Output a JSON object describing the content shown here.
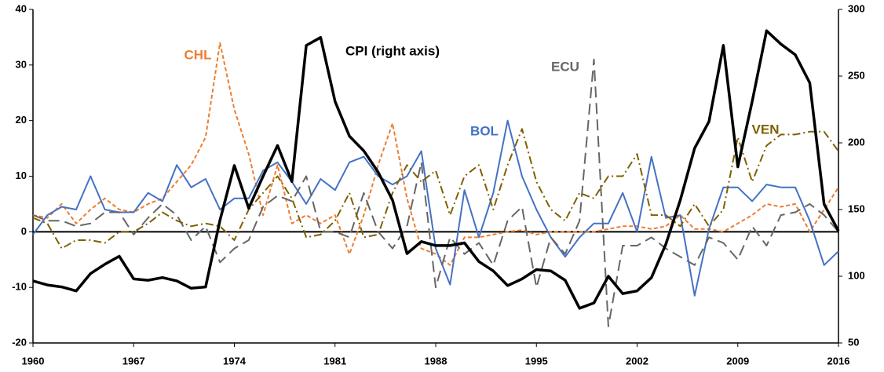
{
  "chart_data": {
    "type": "line",
    "x": [
      1960,
      1961,
      1962,
      1963,
      1964,
      1965,
      1966,
      1967,
      1968,
      1969,
      1970,
      1971,
      1972,
      1973,
      1974,
      1975,
      1976,
      1977,
      1978,
      1979,
      1980,
      1981,
      1982,
      1983,
      1984,
      1985,
      1986,
      1987,
      1988,
      1989,
      1990,
      1991,
      1992,
      1993,
      1994,
      1995,
      1996,
      1997,
      1998,
      1999,
      2000,
      2001,
      2002,
      2003,
      2004,
      2005,
      2006,
      2007,
      2008,
      2009,
      2010,
      2011,
      2012,
      2013,
      2014,
      2015,
      2016
    ],
    "xlim": [
      1960,
      2016
    ],
    "xticks": [
      1960,
      1967,
      1974,
      1981,
      1988,
      1995,
      2002,
      2009,
      2016
    ],
    "ylim": [
      -20,
      40
    ],
    "yticks": [
      -20,
      -10,
      0,
      10,
      20,
      30,
      40
    ],
    "y2lim": [
      50,
      300
    ],
    "y2ticks": [
      50,
      100,
      150,
      200,
      250,
      300
    ],
    "series": [
      {
        "name": "CHL",
        "color": "#ed7d31",
        "values": [
          3,
          2.5,
          5,
          1.5,
          4,
          6,
          4,
          3.5,
          5,
          6,
          9,
          12,
          17,
          34,
          22,
          14,
          3,
          12,
          1.5,
          3,
          1.5,
          3,
          -4,
          3,
          12,
          19.5,
          6,
          -3,
          -4,
          -6,
          -1,
          -1,
          -0.5,
          0,
          0.3,
          -0.5,
          0,
          0,
          0,
          0,
          0.5,
          1,
          1,
          0.5,
          1,
          3,
          0.5,
          0.5,
          0,
          1.5,
          3,
          5,
          4.5,
          5,
          0,
          4,
          8
        ]
      },
      {
        "name": "BOL",
        "color": "#4472c4",
        "values": [
          -0.5,
          3,
          4.5,
          4,
          10,
          4,
          3.5,
          3.5,
          7,
          5.5,
          12,
          8,
          9.5,
          4,
          6,
          6,
          11,
          12.5,
          9,
          5,
          9.5,
          7.5,
          12.5,
          13.5,
          10,
          8.5,
          10,
          14.5,
          -3,
          -9.5,
          7.5,
          -1,
          7,
          20,
          10,
          4,
          -1,
          -4.5,
          -1,
          1.5,
          1.5,
          7,
          0,
          13.5,
          2.5,
          3,
          -11.5,
          0.5,
          8,
          8,
          5.5,
          8.5,
          8,
          8,
          2,
          -6,
          -3.5
        ]
      },
      {
        "name": "ECU",
        "color": "#666666",
        "values": [
          3,
          2,
          2,
          1,
          1.5,
          3.5,
          3.5,
          -0.5,
          2.5,
          5,
          3,
          -1.5,
          1,
          -5.5,
          -3,
          -1.5,
          4.5,
          6.5,
          5.5,
          10,
          0,
          0,
          -1,
          7,
          0,
          -3,
          1,
          12.5,
          -10,
          -1,
          -4,
          -2,
          -6,
          2,
          4.5,
          -10,
          -1,
          -4,
          2,
          31,
          -17,
          -2.5,
          -2.5,
          -1,
          -3,
          -4.5,
          -6,
          -1,
          -2,
          -5,
          1,
          -2.5,
          3,
          3.5,
          5,
          3,
          0
        ]
      },
      {
        "name": "VEN",
        "color": "#7f6000",
        "values": [
          2.5,
          1.5,
          -3,
          -1.5,
          -1.5,
          -2,
          0,
          0,
          1.5,
          3.5,
          2,
          1,
          1.5,
          1,
          -1.5,
          4,
          7,
          10,
          6,
          -1,
          -0.5,
          2,
          7,
          -1,
          -0.5,
          7,
          12,
          9,
          11,
          3,
          10,
          12,
          4,
          12,
          18.5,
          9,
          4,
          2,
          7,
          6,
          10,
          10,
          14,
          3,
          3,
          1,
          5,
          1,
          4,
          17,
          9,
          15.5,
          17.5,
          17.5,
          18,
          18,
          14.5
        ]
      },
      {
        "name": "CPI (right axis)",
        "color": "#000000",
        "axis": "y2",
        "values": [
          96.5,
          93.5,
          92,
          89,
          102,
          109,
          115,
          98,
          97,
          99,
          96.5,
          91,
          92,
          142,
          183,
          151,
          175,
          198,
          171,
          273,
          279,
          231,
          205,
          194,
          178,
          157,
          117,
          126,
          123,
          123,
          125,
          111,
          104,
          93,
          98,
          105,
          104,
          97,
          76,
          80,
          100,
          87,
          89,
          99,
          124,
          157,
          196,
          216,
          273,
          182,
          231,
          284,
          274,
          266,
          245,
          154,
          134
        ]
      }
    ]
  }
}
